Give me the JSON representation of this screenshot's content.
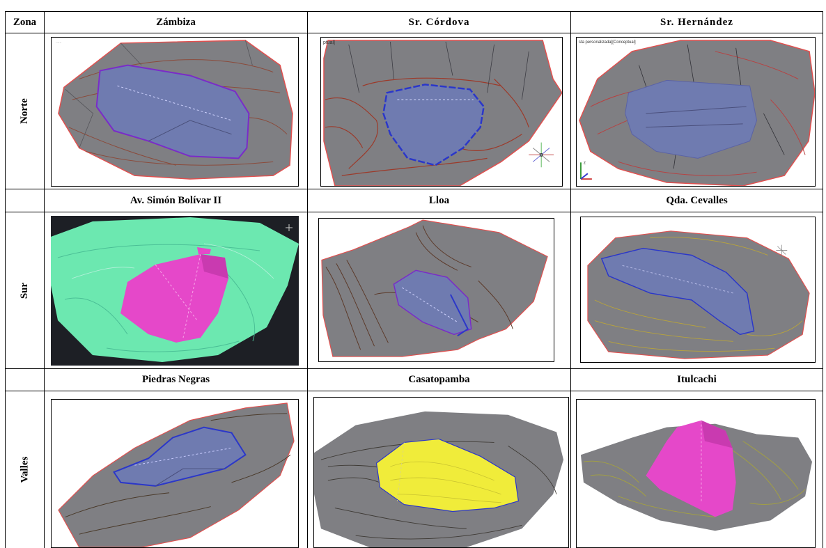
{
  "table": {
    "zone_header": "Zona",
    "zones": [
      "Norte",
      "Sur",
      "Valles"
    ],
    "sites": [
      [
        "Zámbiza",
        "Sr. Córdova",
        "Sr. Hernández"
      ],
      [
        "Av. Simón Bolívar II",
        "Lloa",
        "Qda. Cevalles"
      ],
      [
        "Piedras Negras",
        "Casatopamba",
        "Itulcachi"
      ]
    ]
  },
  "viewport_labels": {
    "cordova": "ptual]",
    "hernandez": "sta personalizada][Conceptual]"
  },
  "colors": {
    "terrain": "#7f7f83",
    "boundary": "#e2504f",
    "fill_blue": "#6f7bb0",
    "outline_blue": "#2b37c9",
    "fill_magenta": "#e548c9",
    "fill_yellow": "#f0ec3a",
    "terrain_green": "#6ce8b0",
    "cad_background": "#1d1f25"
  },
  "icons": [
    "ucs-axis-icon",
    "compass-icon"
  ]
}
